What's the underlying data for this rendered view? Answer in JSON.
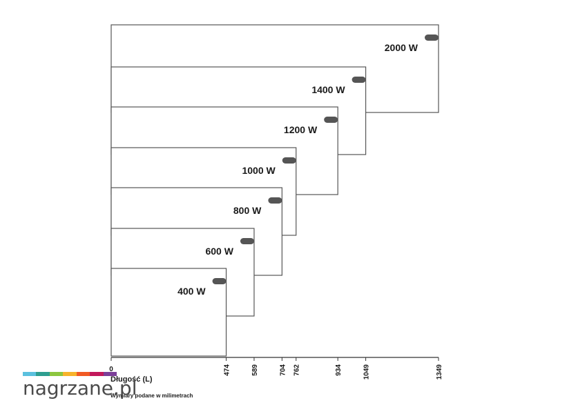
{
  "chart_data": {
    "type": "diagram",
    "panels": [
      {
        "power": "2000 W",
        "length": 1349
      },
      {
        "power": "1400 W",
        "length": 1049
      },
      {
        "power": "1200 W",
        "length": 934
      },
      {
        "power": "1000 W",
        "length": 762
      },
      {
        "power": "800 W",
        "length": 704
      },
      {
        "power": "600 W",
        "length": 589
      },
      {
        "power": "400 W",
        "length": 474
      }
    ],
    "x_ticks": [
      "0",
      "474",
      "589",
      "704",
      "762",
      "934",
      "1049",
      "1349"
    ],
    "x_tick_values": [
      0,
      474,
      589,
      704,
      762,
      934,
      1049,
      1349
    ],
    "xlabel": "Długość (L)",
    "note": "Wymiary podane w milimetrach"
  },
  "logo": {
    "text": "nagrzane.pl",
    "colors": [
      "#5bc0de",
      "#2e9e8f",
      "#8cc63f",
      "#f7b32b",
      "#f15a24",
      "#c2185b",
      "#7b3f98"
    ]
  },
  "colors": {
    "outline": "#555555",
    "thermostat": "#555555",
    "text": "#1a1a1a"
  }
}
